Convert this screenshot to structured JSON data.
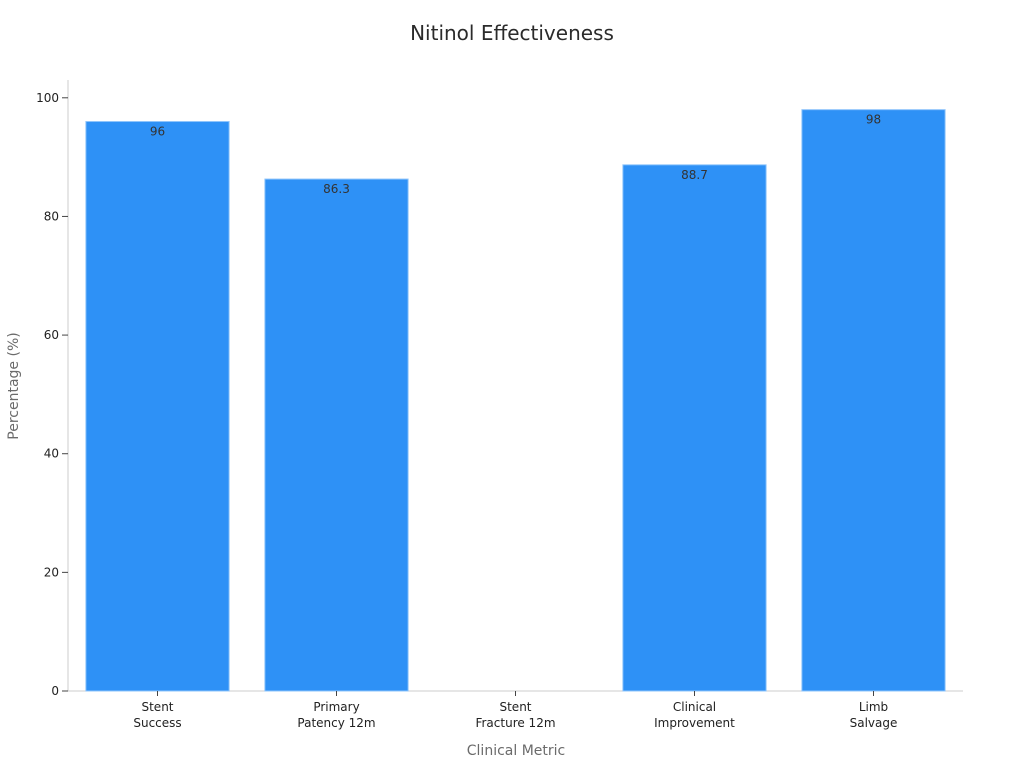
{
  "chart_data": {
    "type": "bar",
    "title": "Nitinol Effectiveness",
    "xlabel": "Clinical Metric",
    "ylabel": "Percentage (%)",
    "categories": [
      [
        "Stent",
        "Success"
      ],
      [
        "Primary",
        "Patency 12m"
      ],
      [
        "Stent",
        "Fracture 12m"
      ],
      [
        "Clinical",
        "Improvement"
      ],
      [
        "Limb",
        "Salvage"
      ]
    ],
    "values": [
      96,
      86.3,
      0,
      88.7,
      98
    ],
    "data_labels": [
      "96",
      "86.3",
      "",
      "88.7",
      "98"
    ],
    "ylim": [
      0,
      103
    ],
    "yticks": [
      0,
      20,
      40,
      60,
      80,
      100
    ],
    "grid": false,
    "bar_color": "#2e91f6"
  }
}
